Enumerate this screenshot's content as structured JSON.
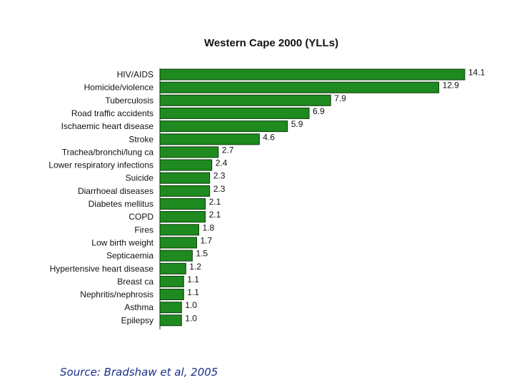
{
  "chart_data": {
    "type": "bar",
    "orientation": "horizontal",
    "title": "Western Cape 2000 (YLLs)",
    "categories": [
      "HIV/AIDS",
      "Homicide/violence",
      "Tuberculosis",
      "Road traffic accidents",
      "Ischaemic heart disease",
      "Stroke",
      "Trachea/bronchi/lung ca",
      "Lower respiratory infections",
      "Suicide",
      "Diarrhoeal diseases",
      "Diabetes mellitus",
      "COPD",
      "Fires",
      "Low birth weight",
      "Septicaemia",
      "Hypertensive heart disease",
      "Breast ca",
      "Nephritis/nephrosis",
      "Asthma",
      "Epilepsy"
    ],
    "values": [
      14.1,
      12.9,
      7.9,
      6.9,
      5.9,
      4.6,
      2.7,
      2.4,
      2.3,
      2.3,
      2.1,
      2.1,
      1.8,
      1.7,
      1.5,
      1.2,
      1.1,
      1.1,
      1.0,
      1.0
    ],
    "value_labels": [
      "14.1",
      "12.9",
      "7.9",
      "6.9",
      "5.9",
      "4.6",
      "2.7",
      "2.4",
      "2.3",
      "2.3",
      "2.1",
      "2.1",
      "1.8",
      "1.7",
      "1.5",
      "1.2",
      "1.1",
      "1.1",
      "1.0",
      "1.0"
    ],
    "xlim": [
      0,
      14.1
    ],
    "grid": false,
    "bar_color": "#1f8a1f",
    "bar_edge_color": "#0b3d0b"
  },
  "footer": {
    "source": "Source: Bradshaw et al, 2005"
  }
}
